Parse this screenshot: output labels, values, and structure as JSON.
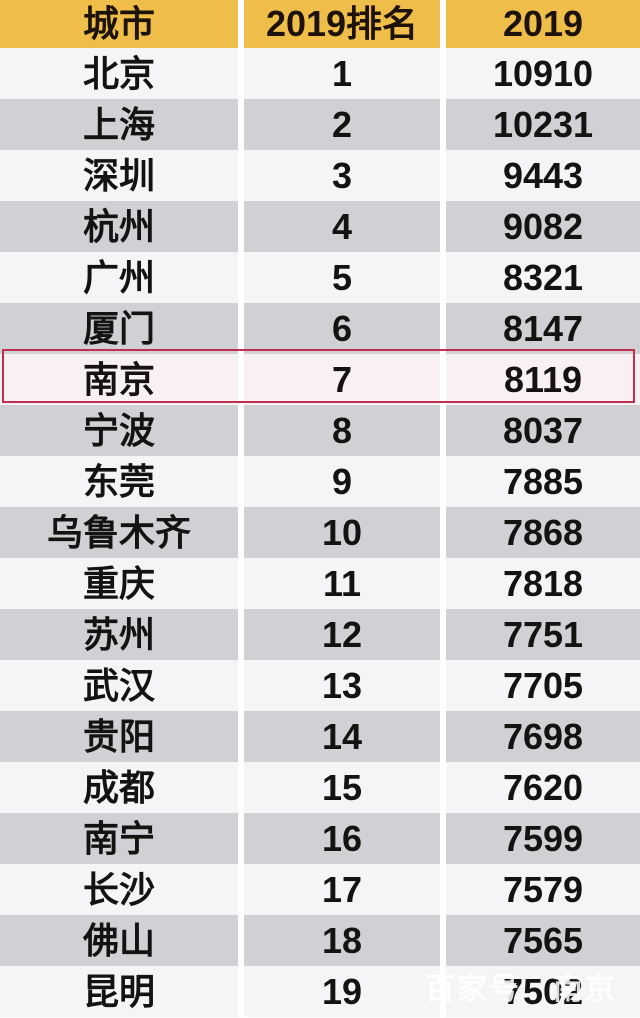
{
  "chart_data": {
    "type": "table",
    "title": "",
    "columns": [
      "城市",
      "2019排名",
      "2019"
    ],
    "rows": [
      [
        "北京",
        "1",
        "10910"
      ],
      [
        "上海",
        "2",
        "10231"
      ],
      [
        "深圳",
        "3",
        "9443"
      ],
      [
        "杭州",
        "4",
        "9082"
      ],
      [
        "广州",
        "5",
        "8321"
      ],
      [
        "厦门",
        "6",
        "8147"
      ],
      [
        "南京",
        "7",
        "8119"
      ],
      [
        "宁波",
        "8",
        "8037"
      ],
      [
        "东莞",
        "9",
        "7885"
      ],
      [
        "乌鲁木齐",
        "10",
        "7868"
      ],
      [
        "重庆",
        "11",
        "7818"
      ],
      [
        "苏州",
        "12",
        "7751"
      ],
      [
        "武汉",
        "13",
        "7705"
      ],
      [
        "贵阳",
        "14",
        "7698"
      ],
      [
        "成都",
        "15",
        "7620"
      ],
      [
        "南宁",
        "16",
        "7599"
      ],
      [
        "长沙",
        "17",
        "7579"
      ],
      [
        "佛山",
        "18",
        "7565"
      ],
      [
        "昆明",
        "19",
        "7502"
      ]
    ],
    "highlighted_row_index": 6,
    "highlighted_row_city": "南京",
    "layout": "alternating row shading, even rows gray"
  },
  "watermark": {
    "left": "百家号",
    "right": "南京"
  },
  "colors": {
    "header_bg": "#efbe4a",
    "header_text": "#1c1206",
    "row_bg": "#f5f5f7",
    "row_alt_bg": "#d1d0d5",
    "highlight_bg": "#f8f0f3",
    "highlight_border": "#bf3050",
    "text": "#151311"
  }
}
